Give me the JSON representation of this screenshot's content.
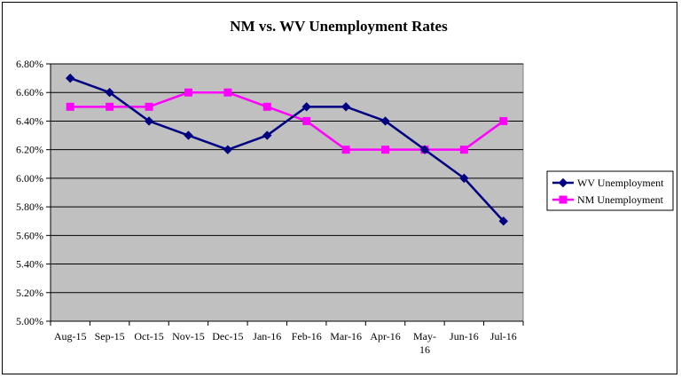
{
  "chart_data": {
    "type": "line",
    "title": "NM vs. WV Unemployment Rates",
    "categories": [
      "Aug-15",
      "Sep-15",
      "Oct-15",
      "Nov-15",
      "Dec-15",
      "Jan-16",
      "Feb-16",
      "Mar-16",
      "Apr-16",
      "May-16",
      "Jun-16",
      "Jul-16"
    ],
    "category_lines": [
      [
        "Aug-15"
      ],
      [
        "Sep-15"
      ],
      [
        "Oct-15"
      ],
      [
        "Nov-15"
      ],
      [
        "Dec-15"
      ],
      [
        "Jan-16"
      ],
      [
        "Feb-16"
      ],
      [
        "Mar-16"
      ],
      [
        "Apr-16"
      ],
      [
        "May-",
        "16"
      ],
      [
        "Jun-16"
      ],
      [
        "Jul-16"
      ]
    ],
    "ylim": [
      0.05,
      0.068
    ],
    "yticks": [
      0.05,
      0.052,
      0.054,
      0.056,
      0.058,
      0.06,
      0.062,
      0.064,
      0.066,
      0.068
    ],
    "ytick_labels": [
      "5.00%",
      "5.20%",
      "5.40%",
      "5.60%",
      "5.80%",
      "6.00%",
      "6.20%",
      "6.40%",
      "6.60%",
      "6.80%"
    ],
    "grid": true,
    "plot_background": "#c0c0c0",
    "legend_position": "right",
    "series": [
      {
        "name": "WV Unemployment",
        "color": "#000080",
        "marker": "diamond",
        "values": [
          0.067,
          0.066,
          0.064,
          0.063,
          0.062,
          0.063,
          0.065,
          0.065,
          0.064,
          0.062,
          0.06,
          0.057
        ]
      },
      {
        "name": "NM Unemployment",
        "color": "#ff00ff",
        "marker": "square",
        "values": [
          0.065,
          0.065,
          0.065,
          0.066,
          0.066,
          0.065,
          0.064,
          0.062,
          0.062,
          0.062,
          0.062,
          0.064
        ]
      }
    ]
  }
}
